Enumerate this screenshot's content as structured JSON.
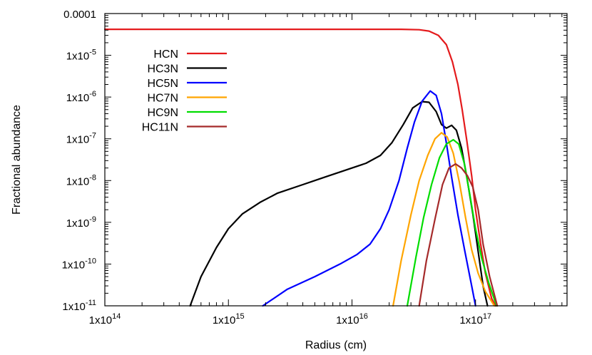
{
  "chart_data": {
    "type": "line",
    "xlabel": "Radius (cm)",
    "ylabel": "Fractional abundance",
    "x_scale": "log",
    "y_scale": "log",
    "xlim": [
      100000000000000.0,
      5.5e+17
    ],
    "ylim": [
      1e-11,
      0.0001
    ],
    "x_ticks": [
      {
        "value": 100000000000000.0,
        "base": "1x10",
        "exp": "14"
      },
      {
        "value": 1000000000000000.0,
        "base": "1x10",
        "exp": "15"
      },
      {
        "value": 1e+16,
        "base": "1x10",
        "exp": "16"
      },
      {
        "value": 1e+17,
        "base": "1x10",
        "exp": "17"
      }
    ],
    "y_ticks": [
      {
        "value": 0.0001,
        "label": "0.0001",
        "base": "",
        "exp": ""
      },
      {
        "value": 1e-05,
        "label": "",
        "base": "1x10",
        "exp": "-5"
      },
      {
        "value": 1e-06,
        "label": "",
        "base": "1x10",
        "exp": "-6"
      },
      {
        "value": 1e-07,
        "label": "",
        "base": "1x10",
        "exp": "-7"
      },
      {
        "value": 1e-08,
        "label": "",
        "base": "1x10",
        "exp": "-8"
      },
      {
        "value": 1e-09,
        "label": "",
        "base": "1x10",
        "exp": "-9"
      },
      {
        "value": 1e-10,
        "label": "",
        "base": "1x10",
        "exp": "-10"
      },
      {
        "value": 1e-11,
        "label": "",
        "base": "1x10",
        "exp": "-11"
      }
    ],
    "grid": false,
    "legend_position": "top-left",
    "series": [
      {
        "name": "HCN",
        "color": "#e41a1c",
        "points": [
          [
            100000000000000.0,
            4.2e-05
          ],
          [
            1000000000000000.0,
            4.2e-05
          ],
          [
            1e+16,
            4.2e-05
          ],
          [
            2.5e+16,
            4.2e-05
          ],
          [
            3.5e+16,
            4.1e-05
          ],
          [
            4.2e+16,
            3.8e-05
          ],
          [
            5e+16,
            3e-05
          ],
          [
            5.8e+16,
            1.8e-05
          ],
          [
            6.5e+16,
            7e-06
          ],
          [
            7.2e+16,
            2e-06
          ],
          [
            7.8e+16,
            5e-07
          ],
          [
            8.5e+16,
            9e-08
          ],
          [
            9.3e+16,
            1.3e-08
          ],
          [
            1e+17,
            2e-09
          ],
          [
            1.1e+17,
            3e-10
          ],
          [
            1.2e+17,
            6e-11
          ],
          [
            1.35e+17,
            1.5e-11
          ],
          [
            1.45e+17,
            1e-11
          ]
        ]
      },
      {
        "name": "HC3N",
        "color": "#000000",
        "points": [
          [
            490000000000000.0,
            1e-11
          ],
          [
            600000000000000.0,
            5e-11
          ],
          [
            800000000000000.0,
            2.5e-10
          ],
          [
            1000000000000000.0,
            7e-10
          ],
          [
            1300000000000000.0,
            1.6e-09
          ],
          [
            1800000000000000.0,
            3e-09
          ],
          [
            2500000000000000.0,
            5e-09
          ],
          [
            4000000000000000.0,
            8e-09
          ],
          [
            6000000000000000.0,
            1.2e-08
          ],
          [
            9000000000000000.0,
            1.8e-08
          ],
          [
            1.3e+16,
            2.6e-08
          ],
          [
            1.7e+16,
            4e-08
          ],
          [
            2.1e+16,
            8e-08
          ],
          [
            2.6e+16,
            2.2e-07
          ],
          [
            3.1e+16,
            5.5e-07
          ],
          [
            3.7e+16,
            7.8e-07
          ],
          [
            4.2e+16,
            7.5e-07
          ],
          [
            4.8e+16,
            4.5e-07
          ],
          [
            5.3e+16,
            2.2e-07
          ],
          [
            5.8e+16,
            1.8e-07
          ],
          [
            6.4e+16,
            2.1e-07
          ],
          [
            7e+16,
            1.6e-07
          ],
          [
            7.7e+16,
            6e-08
          ],
          [
            8.5e+16,
            1.2e-08
          ],
          [
            9.5e+16,
            1.6e-09
          ],
          [
            1.05e+17,
            2e-10
          ],
          [
            1.15e+17,
            3e-11
          ],
          [
            1.25e+17,
            1e-11
          ]
        ]
      },
      {
        "name": "HC5N",
        "color": "#0000ff",
        "points": [
          [
            1900000000000000.0,
            1e-11
          ],
          [
            3000000000000000.0,
            2.5e-11
          ],
          [
            5000000000000000.0,
            5e-11
          ],
          [
            8000000000000000.0,
            1e-10
          ],
          [
            1.1e+16,
            1.7e-10
          ],
          [
            1.4e+16,
            3e-10
          ],
          [
            1.7e+16,
            7e-10
          ],
          [
            2e+16,
            2e-09
          ],
          [
            2.4e+16,
            1e-08
          ],
          [
            2.8e+16,
            6e-08
          ],
          [
            3.2e+16,
            2.5e-07
          ],
          [
            3.7e+16,
            8e-07
          ],
          [
            4.3e+16,
            1.4e-06
          ],
          [
            4.8e+16,
            1.1e-06
          ],
          [
            5.3e+16,
            4e-07
          ],
          [
            5.8e+16,
            8e-08
          ],
          [
            6.4e+16,
            1.2e-08
          ],
          [
            7.2e+16,
            1.5e-09
          ],
          [
            8.2e+16,
            2e-10
          ],
          [
            9.3e+16,
            3e-11
          ],
          [
            1e+17,
            1e-11
          ]
        ]
      },
      {
        "name": "HC7N",
        "color": "#ffa500",
        "points": [
          [
            2.15e+16,
            1e-11
          ],
          [
            2.5e+16,
            1.2e-10
          ],
          [
            3e+16,
            1.5e-09
          ],
          [
            3.5e+16,
            1e-08
          ],
          [
            4.1e+16,
            4e-08
          ],
          [
            4.7e+16,
            1e-07
          ],
          [
            5.3e+16,
            1.4e-07
          ],
          [
            5.9e+16,
            1.1e-07
          ],
          [
            6.6e+16,
            4.5e-08
          ],
          [
            7.4e+16,
            9e-09
          ],
          [
            8.3e+16,
            1.3e-09
          ],
          [
            9.3e+16,
            2.2e-10
          ],
          [
            1.05e+17,
            6e-11
          ],
          [
            1.2e+17,
            2.2e-11
          ],
          [
            1.42e+17,
            1e-11
          ]
        ]
      },
      {
        "name": "HC9N",
        "color": "#00dd00",
        "points": [
          [
            2.8e+16,
            1e-11
          ],
          [
            3.3e+16,
            1.5e-10
          ],
          [
            3.8e+16,
            1.3e-09
          ],
          [
            4.4e+16,
            8e-09
          ],
          [
            5.1e+16,
            3.5e-08
          ],
          [
            5.8e+16,
            7.5e-08
          ],
          [
            6.6e+16,
            9.5e-08
          ],
          [
            7.3e+16,
            7.5e-08
          ],
          [
            8.1e+16,
            2.6e-08
          ],
          [
            9e+16,
            4.5e-09
          ],
          [
            1e+17,
            7e-10
          ],
          [
            1.12e+17,
            1.4e-10
          ],
          [
            1.28e+17,
            3.5e-11
          ],
          [
            1.48e+17,
            1e-11
          ]
        ]
      },
      {
        "name": "HC11N",
        "color": "#a52a2a",
        "points": [
          [
            3.5e+16,
            1e-11
          ],
          [
            4e+16,
            1.2e-10
          ],
          [
            4.7e+16,
            1.2e-09
          ],
          [
            5.4e+16,
            8e-09
          ],
          [
            6.1e+16,
            2e-08
          ],
          [
            6.9e+16,
            2.5e-08
          ],
          [
            7.7e+16,
            2e-08
          ],
          [
            8.6e+16,
            1.3e-08
          ],
          [
            9.5e+16,
            7e-09
          ],
          [
            1.05e+17,
            2e-09
          ],
          [
            1.15e+17,
            3e-10
          ],
          [
            1.3e+17,
            5e-11
          ],
          [
            1.5e+17,
            1e-11
          ]
        ]
      }
    ]
  }
}
